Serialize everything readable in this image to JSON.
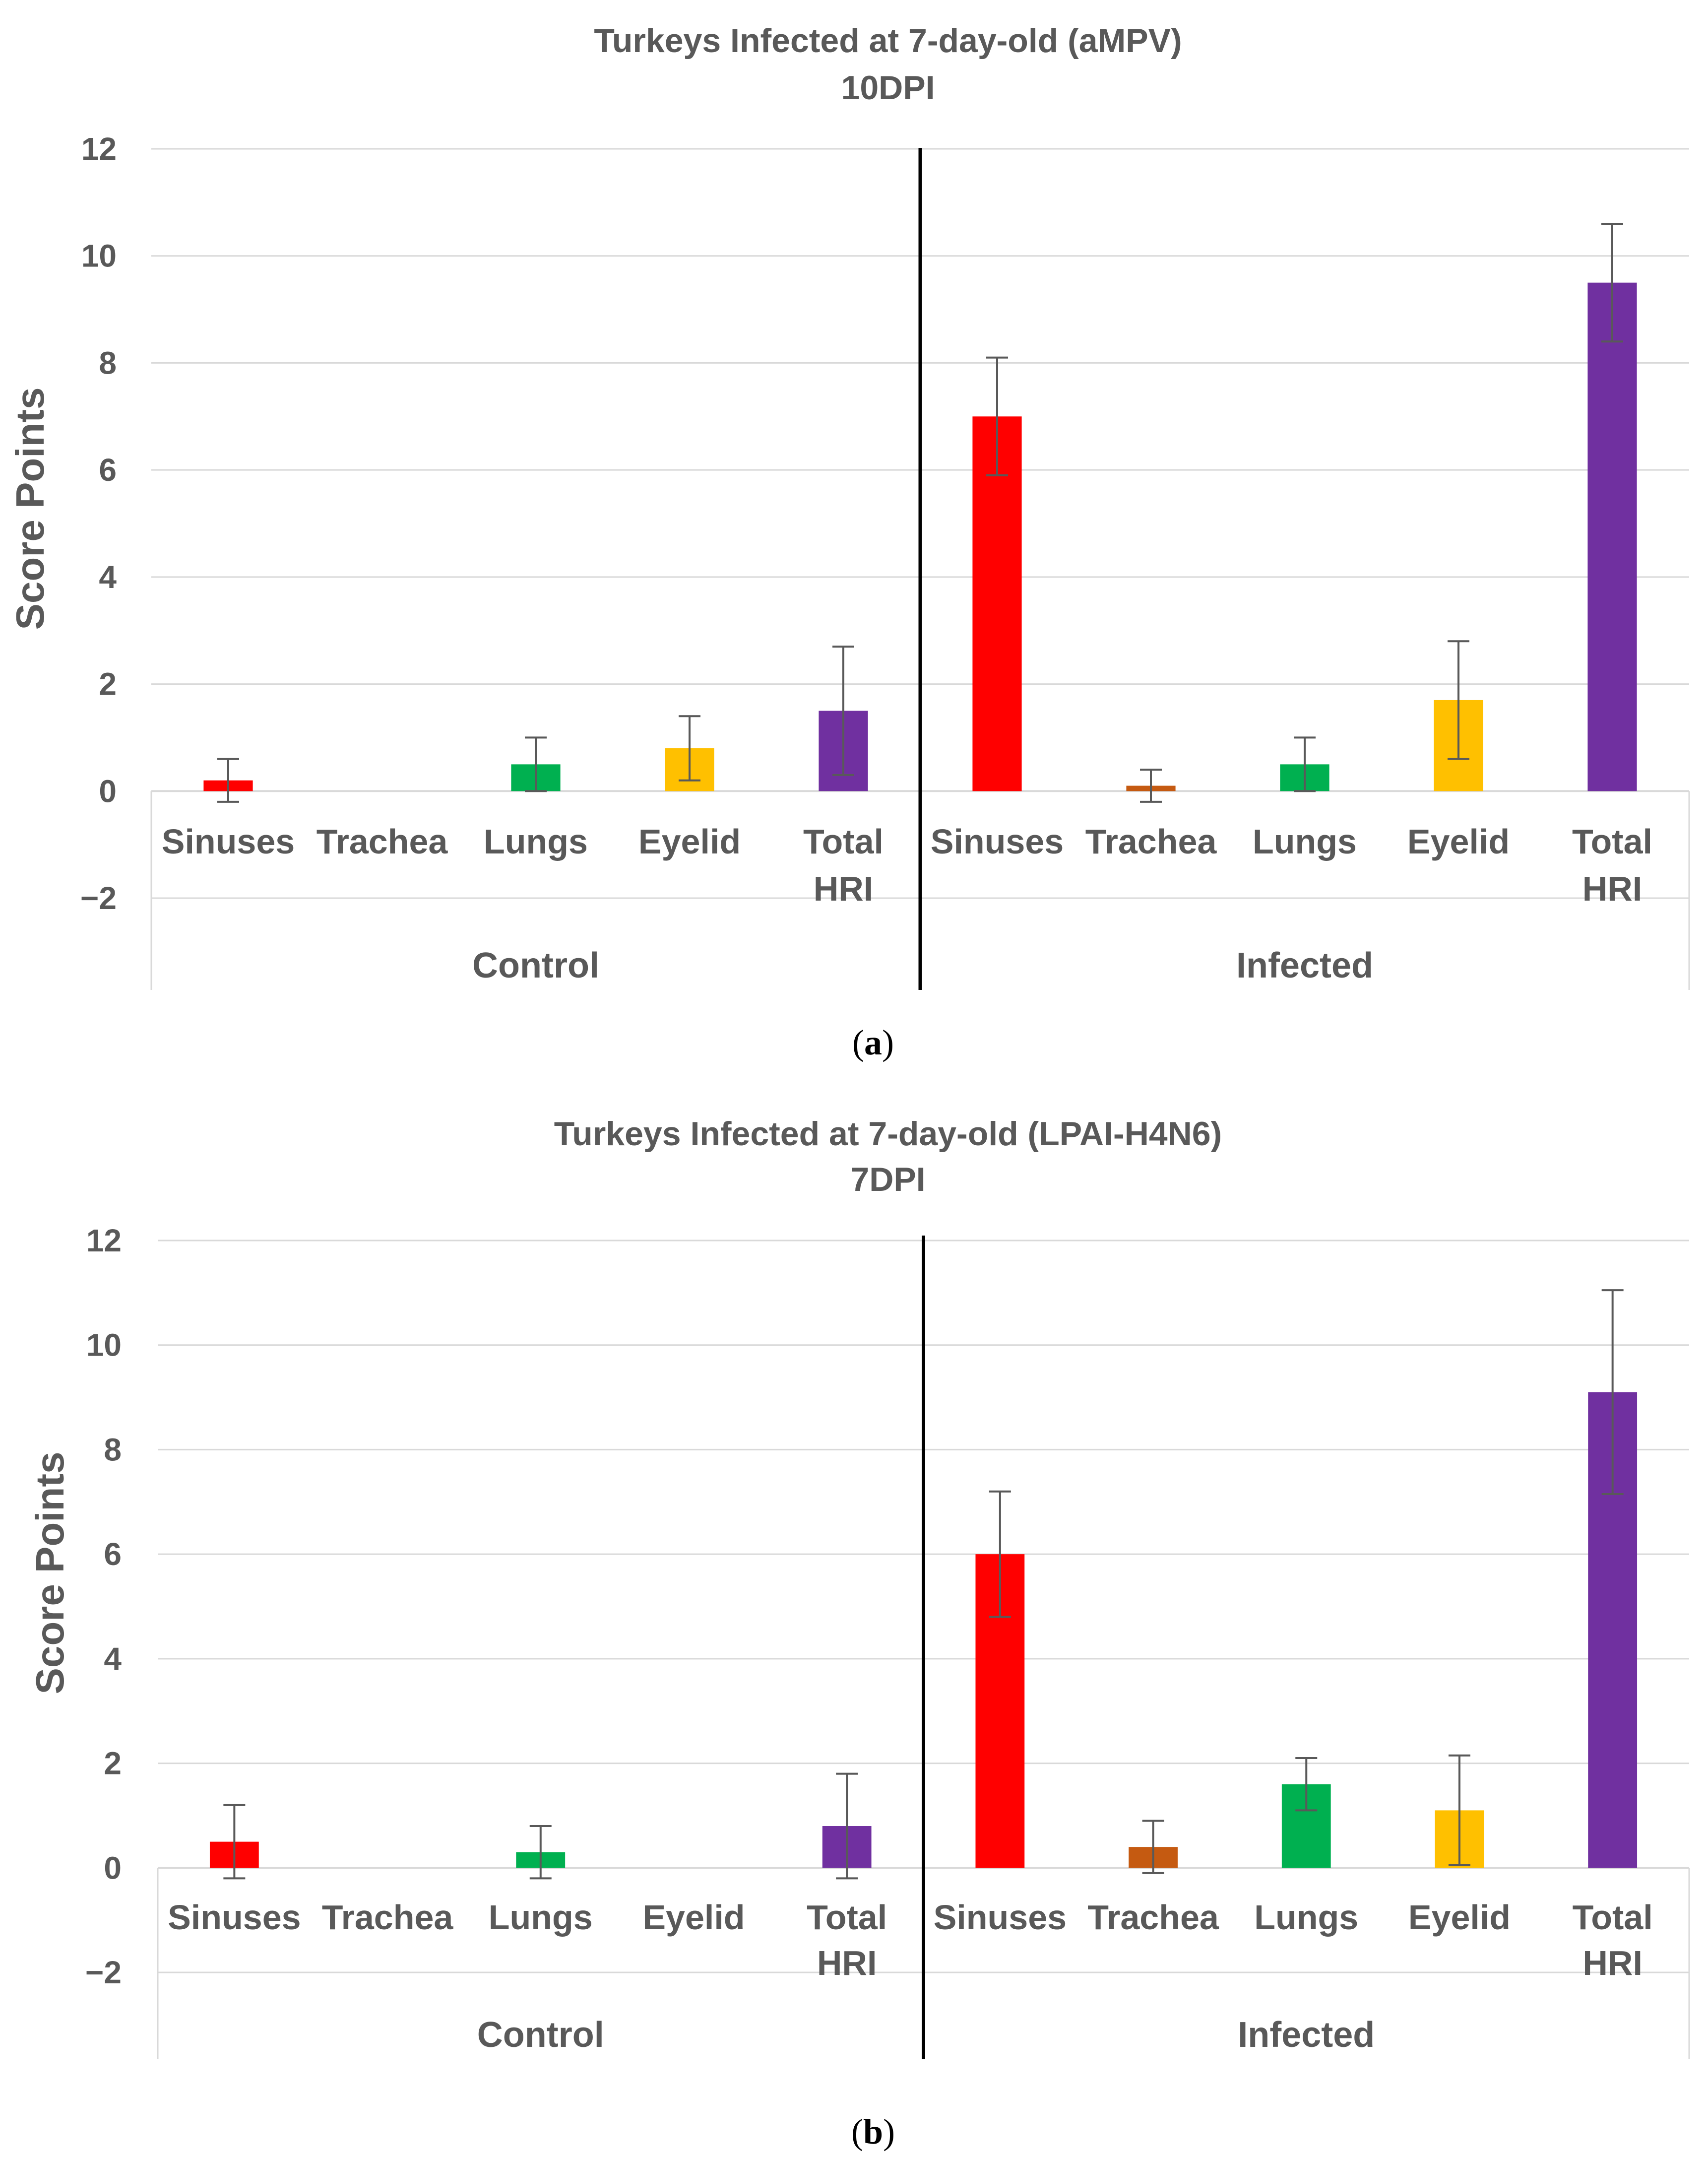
{
  "chart_data": [
    {
      "type": "bar",
      "panel": "a",
      "title": "Turkeys Infected at 7-day-old (aMPV)",
      "subtitle": "10DPI",
      "ylabel": "Score Points",
      "xlabel": "",
      "ylim": [
        -2,
        12
      ],
      "yticks": [
        -2,
        0,
        2,
        4,
        6,
        8,
        10,
        12
      ],
      "ytick_labels": [
        "−2",
        "0",
        "2",
        "4",
        "6",
        "8",
        "10",
        "12"
      ],
      "groups": [
        {
          "name": "Control",
          "categories": [
            "Sinuses",
            "Trachea",
            "Lungs",
            "Eyelid",
            "Total HRI"
          ],
          "values": [
            0.2,
            0,
            0.5,
            0.8,
            1.5
          ],
          "errors": [
            0.4,
            0,
            0.5,
            0.6,
            1.2
          ]
        },
        {
          "name": "Infected",
          "categories": [
            "Sinuses",
            "Trachea",
            "Lungs",
            "Eyelid",
            "Total HRI"
          ],
          "values": [
            7.0,
            0.1,
            0.5,
            1.7,
            9.5
          ],
          "errors": [
            1.1,
            0.3,
            0.5,
            1.1,
            1.1
          ]
        }
      ],
      "category_colors": [
        "#ff0000",
        "#c55a11",
        "#00b050",
        "#ffc000",
        "#7030a0"
      ],
      "grid": true
    },
    {
      "type": "bar",
      "panel": "b",
      "title": "Turkeys Infected at 7-day-old (LPAI-H4N6)",
      "subtitle": "7DPI",
      "ylabel": "Score Points",
      "xlabel": "",
      "ylim": [
        -2,
        12
      ],
      "yticks": [
        -2,
        0,
        2,
        4,
        6,
        8,
        10,
        12
      ],
      "ytick_labels": [
        "−2",
        "0",
        "2",
        "4",
        "6",
        "8",
        "10",
        "12"
      ],
      "groups": [
        {
          "name": "Control",
          "categories": [
            "Sinuses",
            "Trachea",
            "Lungs",
            "Eyelid",
            "Total HRI"
          ],
          "values": [
            0.5,
            0,
            0.3,
            0,
            0.8
          ],
          "errors": [
            0.7,
            0,
            0.5,
            0,
            1.0
          ]
        },
        {
          "name": "Infected",
          "categories": [
            "Sinuses",
            "Trachea",
            "Lungs",
            "Eyelid",
            "Total HRI"
          ],
          "values": [
            6.0,
            0.4,
            1.6,
            1.1,
            9.1
          ],
          "errors": [
            1.2,
            0.5,
            0.5,
            1.05,
            1.95
          ]
        }
      ],
      "category_colors": [
        "#ff0000",
        "#c55a11",
        "#00b050",
        "#ffc000",
        "#7030a0"
      ],
      "grid": true
    }
  ],
  "captions": {
    "a_open": "(",
    "a_letter": "a",
    "a_close": ")",
    "b_open": "(",
    "b_letter": "b",
    "b_close": ")"
  },
  "colors": {
    "axis_text": "#595959",
    "grid": "#d9d9d9",
    "error_bar": "#595959",
    "divider": "#000000"
  }
}
